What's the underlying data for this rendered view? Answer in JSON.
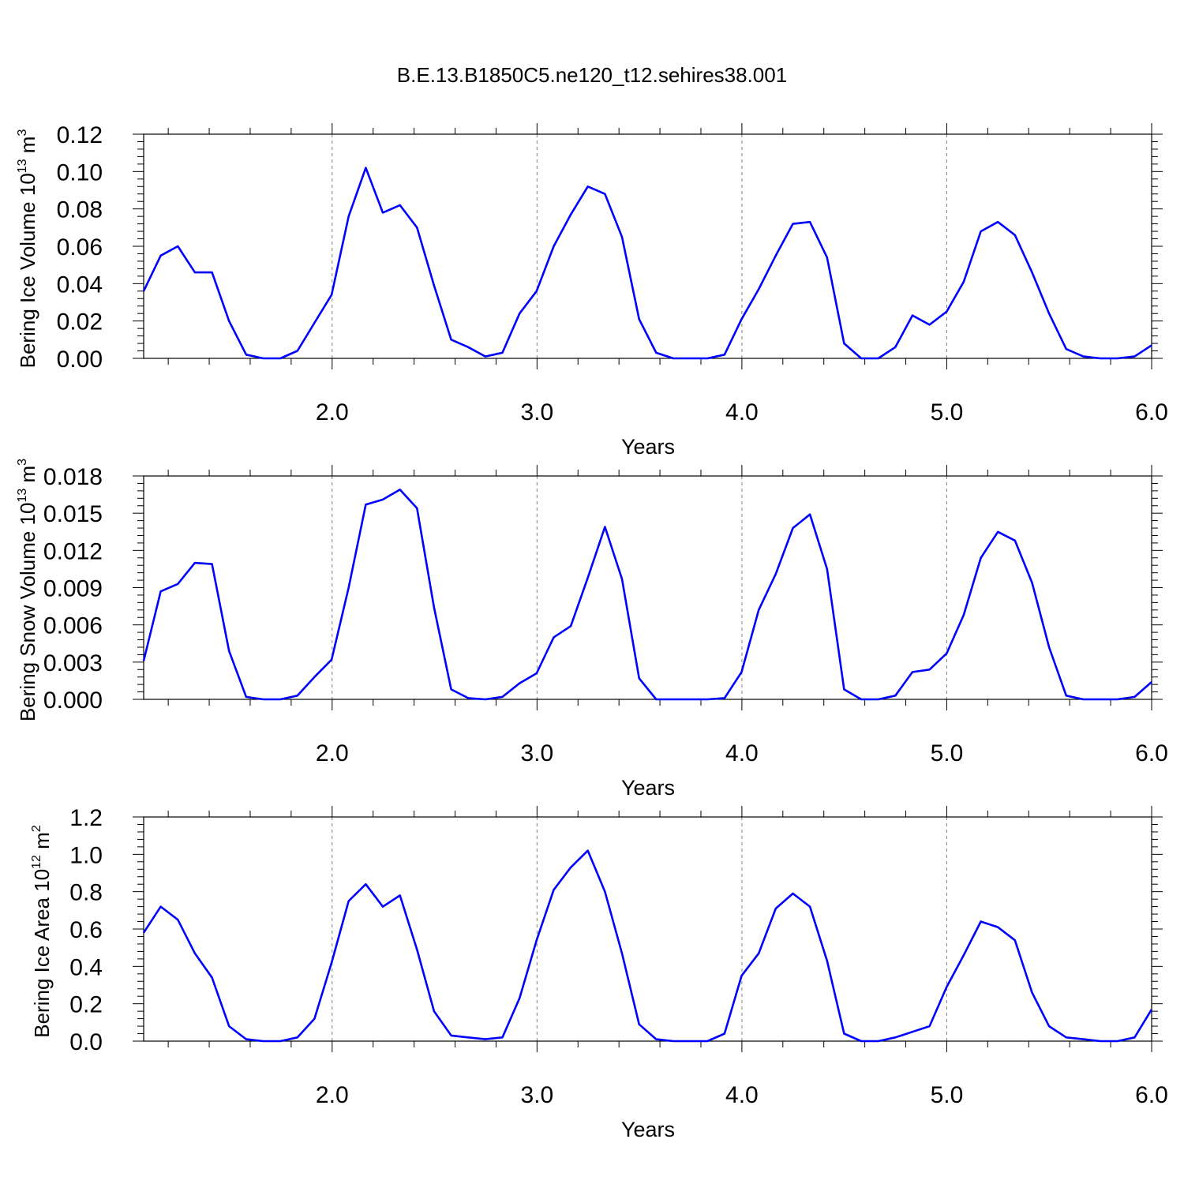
{
  "title": "B.E.13.B1850C5.ne120_t12.sehires38.001",
  "colors": {
    "line": "#0000ff",
    "axis": "#000000",
    "grid": "#808080"
  },
  "chart_data": [
    {
      "type": "line",
      "ylabel": "Bering Ice Volume 10",
      "ylabel_exp": "13",
      "ylabel_unit": " m",
      "ylabel_unit_exp": "3",
      "xlabel": "Years",
      "xlim": [
        1.08,
        6.0
      ],
      "ylim": [
        0,
        0.12
      ],
      "xticks": [
        "2.0",
        "3.0",
        "4.0",
        "5.0",
        "6.0"
      ],
      "yticks": [
        "0.00",
        "0.02",
        "0.04",
        "0.06",
        "0.08",
        "0.10",
        "0.12"
      ],
      "grid": "vertical dashed at major x ticks",
      "series": [
        {
          "values": [
            0.036,
            0.055,
            0.06,
            0.046,
            0.046,
            0.02,
            0.002,
            0.0,
            0.0,
            0.004,
            0.019,
            0.034,
            0.076,
            0.102,
            0.078,
            0.082,
            0.07,
            0.039,
            0.01,
            0.006,
            0.001,
            0.003,
            0.024,
            0.036,
            0.06,
            0.077,
            0.092,
            0.088,
            0.065,
            0.021,
            0.003,
            0.0,
            0.0,
            0.0,
            0.002,
            0.021,
            0.037,
            0.055,
            0.072,
            0.073,
            0.054,
            0.008,
            0.0,
            0.0,
            0.006,
            0.023,
            0.018,
            0.025,
            0.041,
            0.068,
            0.073,
            0.066,
            0.046,
            0.024,
            0.005,
            0.001,
            0.0,
            0.0,
            0.001,
            0.007
          ]
        }
      ]
    },
    {
      "type": "line",
      "ylabel": "Bering Snow Volume 10",
      "ylabel_exp": "13",
      "ylabel_unit": " m",
      "ylabel_unit_exp": "3",
      "xlabel": "Years",
      "xlim": [
        1.08,
        6.0
      ],
      "ylim": [
        0,
        0.018
      ],
      "xticks": [
        "2.0",
        "3.0",
        "4.0",
        "5.0",
        "6.0"
      ],
      "yticks": [
        "0.000",
        "0.003",
        "0.006",
        "0.009",
        "0.012",
        "0.015",
        "0.018"
      ],
      "grid": "vertical dashed at major x ticks",
      "series": [
        {
          "values": [
            0.0031,
            0.0087,
            0.0093,
            0.011,
            0.0109,
            0.0039,
            0.0002,
            0.0,
            0.0,
            0.0003,
            0.0018,
            0.0032,
            0.009,
            0.0157,
            0.0161,
            0.0169,
            0.0154,
            0.0074,
            0.0008,
            0.0001,
            0.0,
            0.0002,
            0.0013,
            0.0021,
            0.005,
            0.0059,
            0.0098,
            0.0139,
            0.0097,
            0.0017,
            0.0,
            0.0,
            0.0,
            0.0,
            0.0001,
            0.0022,
            0.0072,
            0.0101,
            0.0138,
            0.0149,
            0.0105,
            0.0008,
            0.0,
            0.0,
            0.0003,
            0.0022,
            0.0024,
            0.0037,
            0.0068,
            0.0114,
            0.0135,
            0.0128,
            0.0094,
            0.0042,
            0.0003,
            0.0,
            0.0,
            0.0,
            0.0002,
            0.0014
          ]
        }
      ]
    },
    {
      "type": "line",
      "ylabel": "Bering Ice Area 10",
      "ylabel_exp": "12",
      "ylabel_unit": " m",
      "ylabel_unit_exp": "2",
      "xlabel": "Years",
      "xlim": [
        1.08,
        6.0
      ],
      "ylim": [
        0,
        1.2
      ],
      "xticks": [
        "2.0",
        "3.0",
        "4.0",
        "5.0",
        "6.0"
      ],
      "yticks": [
        "0.0",
        "0.2",
        "0.4",
        "0.6",
        "0.8",
        "1.0",
        "1.2"
      ],
      "grid": "vertical dashed at major x ticks",
      "series": [
        {
          "values": [
            0.58,
            0.72,
            0.65,
            0.47,
            0.34,
            0.08,
            0.01,
            0.0,
            0.0,
            0.02,
            0.12,
            0.42,
            0.75,
            0.84,
            0.72,
            0.78,
            0.49,
            0.16,
            0.03,
            0.02,
            0.01,
            0.02,
            0.23,
            0.54,
            0.81,
            0.93,
            1.02,
            0.8,
            0.47,
            0.09,
            0.01,
            0.0,
            0.0,
            0.0,
            0.04,
            0.35,
            0.47,
            0.71,
            0.79,
            0.72,
            0.43,
            0.04,
            0.0,
            0.0,
            0.02,
            0.05,
            0.08,
            0.29,
            0.46,
            0.64,
            0.61,
            0.54,
            0.26,
            0.08,
            0.02,
            0.01,
            0.0,
            0.0,
            0.02,
            0.17
          ]
        }
      ]
    }
  ]
}
